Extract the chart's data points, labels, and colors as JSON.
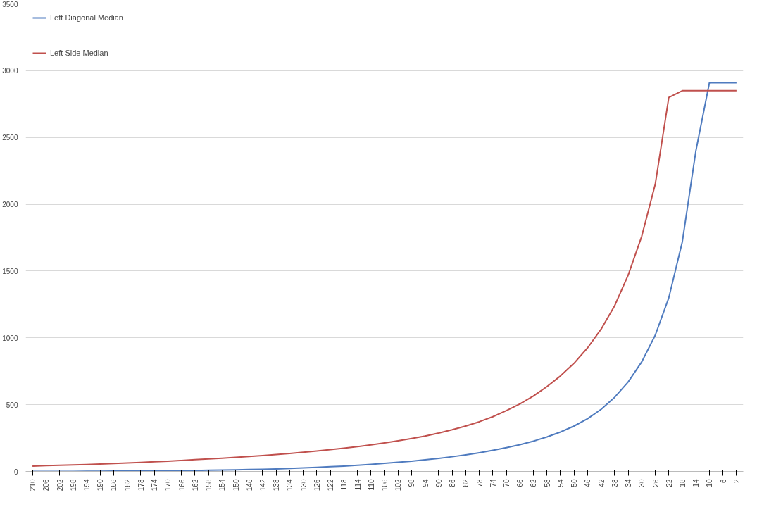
{
  "chart_data": {
    "type": "line",
    "categories": [
      "210",
      "206",
      "202",
      "198",
      "194",
      "190",
      "186",
      "182",
      "178",
      "174",
      "170",
      "166",
      "162",
      "158",
      "154",
      "150",
      "146",
      "142",
      "138",
      "134",
      "130",
      "126",
      "122",
      "118",
      "114",
      "110",
      "106",
      "102",
      "98",
      "94",
      "90",
      "86",
      "82",
      "78",
      "74",
      "70",
      "66",
      "62",
      "58",
      "54",
      "50",
      "46",
      "42",
      "38",
      "34",
      "30",
      "26",
      "22",
      "18",
      "14",
      "10",
      "6",
      "2"
    ],
    "series": [
      {
        "name": "Left Diagonal Median",
        "color": "#4f7bbf",
        "values": [
          0,
          0,
          0,
          0,
          1,
          1,
          2,
          2,
          3,
          4,
          5,
          6,
          7,
          9,
          10,
          12,
          14,
          16,
          19,
          22,
          26,
          30,
          35,
          40,
          46,
          53,
          60,
          68,
          77,
          87,
          98,
          110,
          124,
          140,
          158,
          178,
          200,
          227,
          258,
          295,
          340,
          395,
          465,
          555,
          670,
          820,
          1020,
          1300,
          1720,
          2400,
          2910,
          2910,
          2910
        ]
      },
      {
        "name": "Left Side Median",
        "color": "#c0504d",
        "values": [
          40,
          43,
          46,
          49,
          52,
          55,
          59,
          63,
          67,
          72,
          77,
          82,
          88,
          93,
          99,
          105,
          112,
          119,
          127,
          135,
          144,
          153,
          163,
          174,
          186,
          199,
          213,
          229,
          246,
          265,
          287,
          312,
          340,
          372,
          410,
          455,
          505,
          565,
          635,
          715,
          810,
          925,
          1065,
          1240,
          1470,
          1760,
          2150,
          2800,
          2850,
          2850,
          2850,
          2850,
          2850
        ]
      }
    ],
    "ylim": [
      0,
      3500
    ],
    "yticks": [
      0,
      500,
      1000,
      1500,
      2000,
      2500,
      3000,
      3500
    ],
    "grid": "y",
    "legend": "top left",
    "marker": "none",
    "line_style": "solid"
  }
}
